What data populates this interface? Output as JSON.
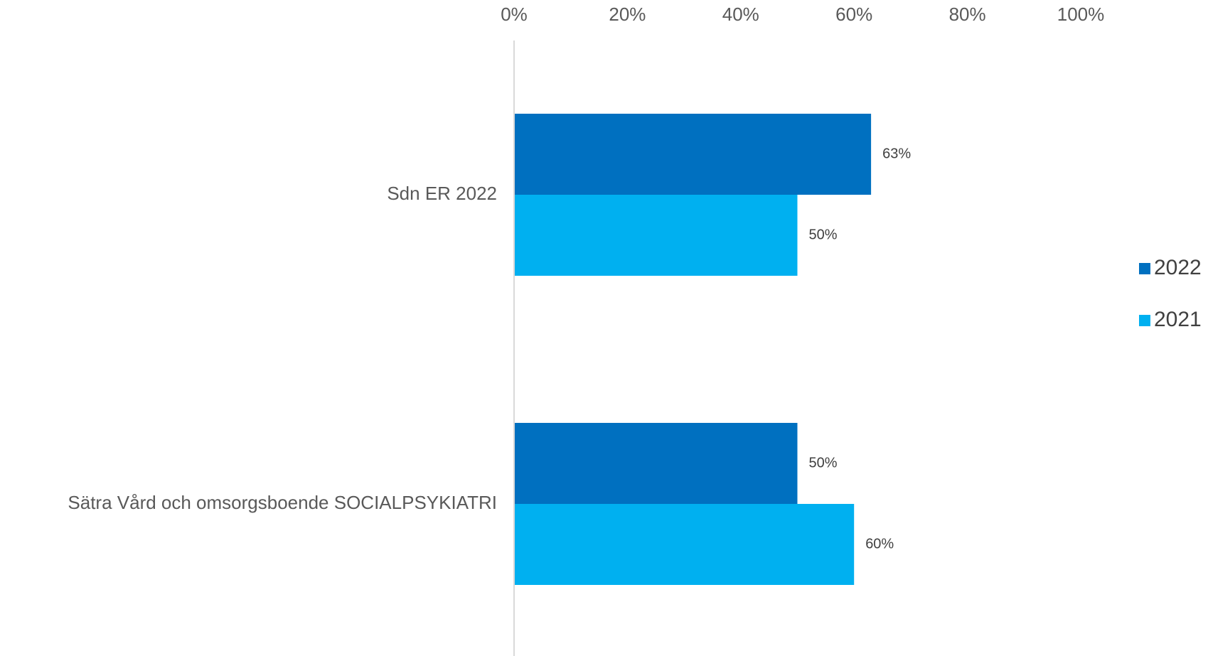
{
  "chart_data": {
    "type": "bar",
    "orientation": "horizontal",
    "categories": [
      "Sdn ER 2022",
      "Sätra Vård och omsorgsboende SOCIALPSYKIATRI"
    ],
    "series": [
      {
        "name": "2022",
        "values": [
          63,
          50
        ],
        "color": "#0070C0"
      },
      {
        "name": "2021",
        "values": [
          50,
          60
        ],
        "color": "#00B0F0"
      }
    ],
    "data_labels": [
      [
        "63%",
        "50%"
      ],
      [
        "50%",
        "60%"
      ]
    ],
    "x_axis": {
      "position": "top",
      "range": [
        0,
        100
      ],
      "ticks": [
        0,
        20,
        40,
        60,
        80,
        100
      ],
      "tick_labels": [
        "0%",
        "20%",
        "40%",
        "60%",
        "80%",
        "100%"
      ]
    },
    "legend": {
      "position": "right",
      "entries": [
        "2022",
        "2021"
      ]
    },
    "gridlines": false,
    "axis_line_color": "#D9D9D9"
  }
}
